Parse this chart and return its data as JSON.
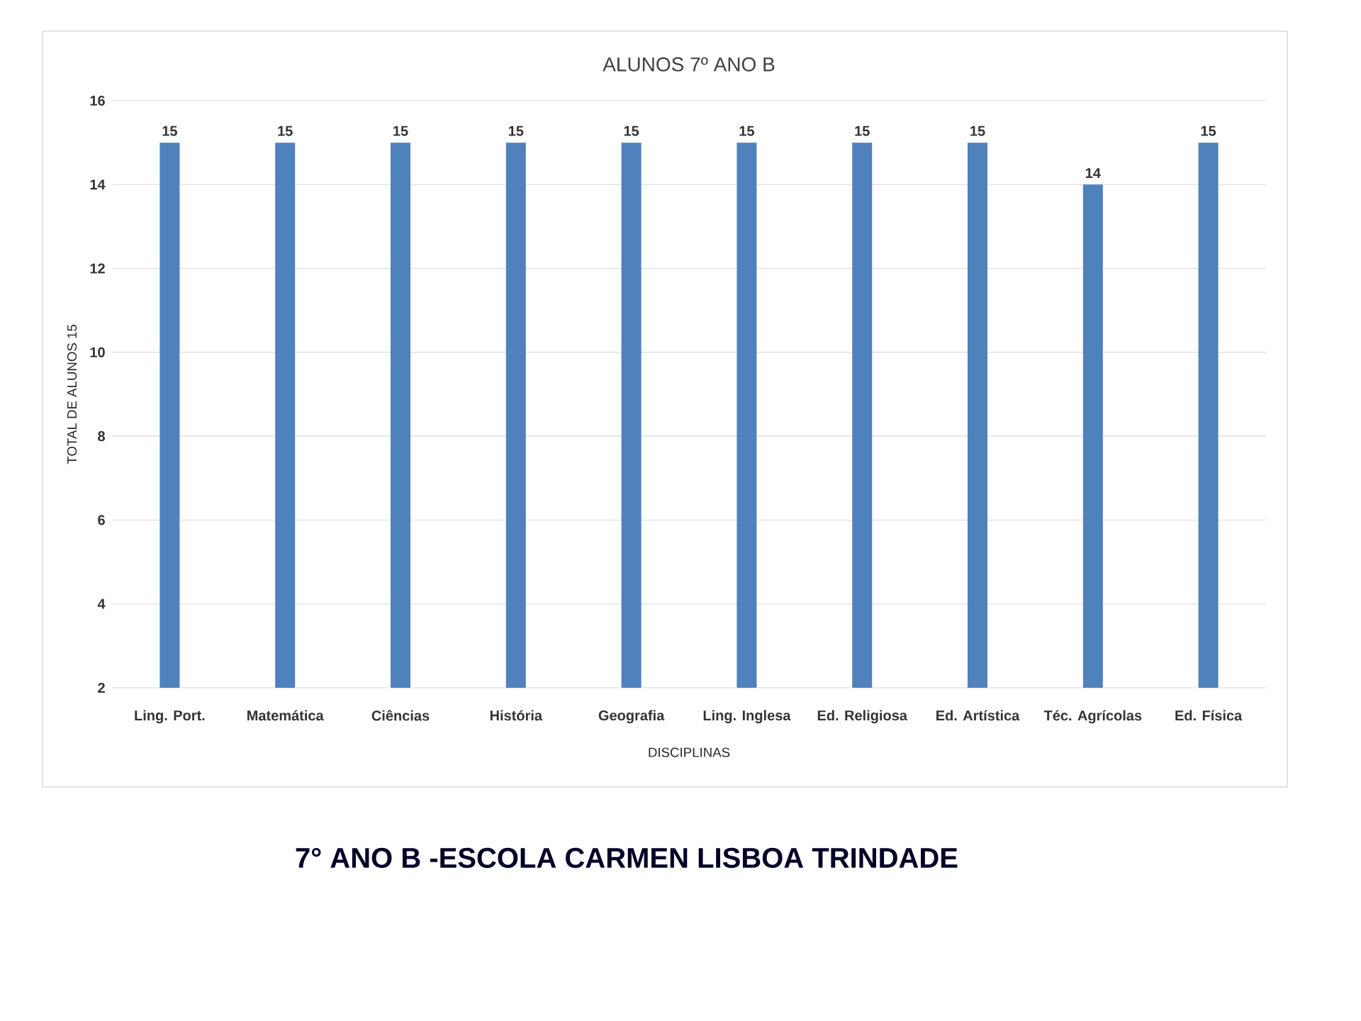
{
  "chart_data": {
    "type": "bar",
    "title": "ALUNOS 7º ANO B",
    "xlabel": "DISCIPLINAS",
    "ylabel": "TOTAL DE ALUNOS 15",
    "categories": [
      "Ling. Port.",
      "Matemática",
      "Ciências",
      "História",
      "Geografia",
      "Ling. Inglesa",
      "Ed. Religiosa",
      "Ed. Artística",
      "Téc. Agrícolas",
      "Ed. Física"
    ],
    "values": [
      15,
      15,
      15,
      15,
      15,
      15,
      15,
      15,
      14,
      15
    ],
    "color": "#4f81bd",
    "ylim": [
      2,
      16
    ],
    "yticks": [
      2,
      4,
      6,
      8,
      10,
      12,
      14,
      16
    ],
    "grid": "y",
    "data_labels": true,
    "annotations": [
      "7° ANO B  -ESCOLA CARMEN LISBOA TRINDADE"
    ]
  }
}
